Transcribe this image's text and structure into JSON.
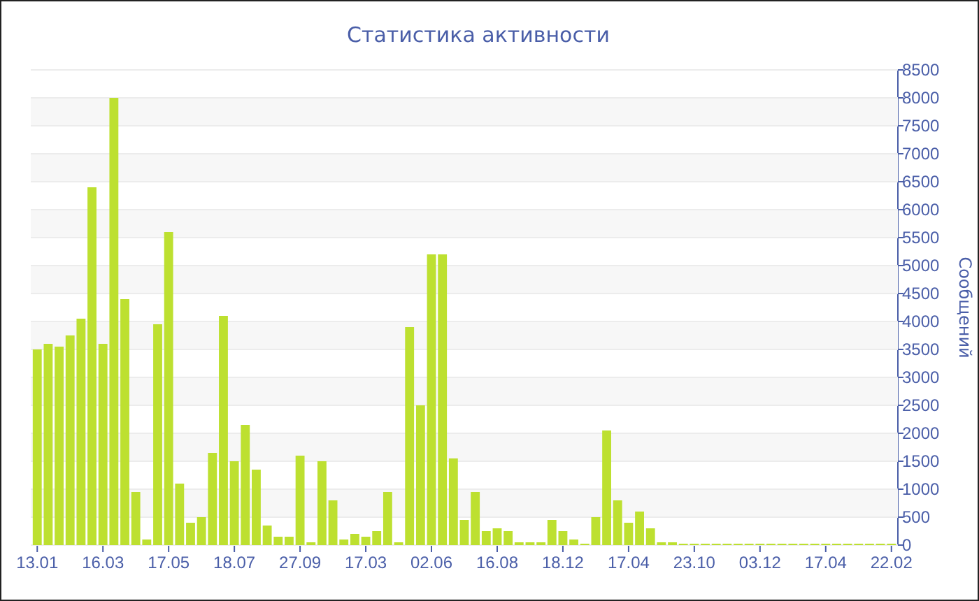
{
  "chart_data": {
    "type": "bar",
    "title": "Статистика активности",
    "ylabel": "Сообщений",
    "categories": [
      "13.01",
      null,
      null,
      null,
      null,
      null,
      "16.03",
      null,
      null,
      null,
      null,
      null,
      "17.05",
      null,
      null,
      null,
      null,
      null,
      "18.07",
      null,
      null,
      null,
      null,
      null,
      "27.09",
      null,
      null,
      null,
      null,
      null,
      "17.03",
      null,
      null,
      null,
      null,
      null,
      "02.06",
      null,
      null,
      null,
      null,
      null,
      "16.08",
      null,
      null,
      null,
      null,
      null,
      "18.12",
      null,
      null,
      null,
      null,
      null,
      "17.04",
      null,
      null,
      null,
      null,
      null,
      "23.10",
      null,
      null,
      null,
      null,
      null,
      "03.12",
      null,
      null,
      null,
      null,
      null,
      "17.04",
      null,
      null,
      null,
      null,
      null,
      "22.02"
    ],
    "values": [
      3500,
      3600,
      3550,
      3750,
      4050,
      6400,
      3600,
      8000,
      4400,
      950,
      100,
      3950,
      5600,
      1100,
      400,
      500,
      1650,
      4100,
      1500,
      2150,
      1350,
      350,
      150,
      150,
      1600,
      50,
      1500,
      800,
      100,
      200,
      150,
      250,
      950,
      50,
      3900,
      2500,
      5200,
      5200,
      1550,
      450,
      950,
      250,
      300,
      250,
      50,
      50,
      50,
      450,
      250,
      100,
      25,
      500,
      2050,
      800,
      400,
      600,
      300,
      50,
      50,
      25,
      25,
      25,
      25,
      25,
      25,
      25,
      25,
      25,
      25,
      25,
      25,
      25,
      25,
      25,
      25,
      25,
      25,
      25,
      25
    ],
    "color": "#bde030",
    "ylim": [
      0,
      8500
    ],
    "yticks": [
      0,
      500,
      1000,
      1500,
      2000,
      2500,
      3000,
      3500,
      4000,
      4500,
      5000,
      5500,
      6000,
      6500,
      7000,
      7500,
      8000,
      8500
    ],
    "grid": "y"
  }
}
